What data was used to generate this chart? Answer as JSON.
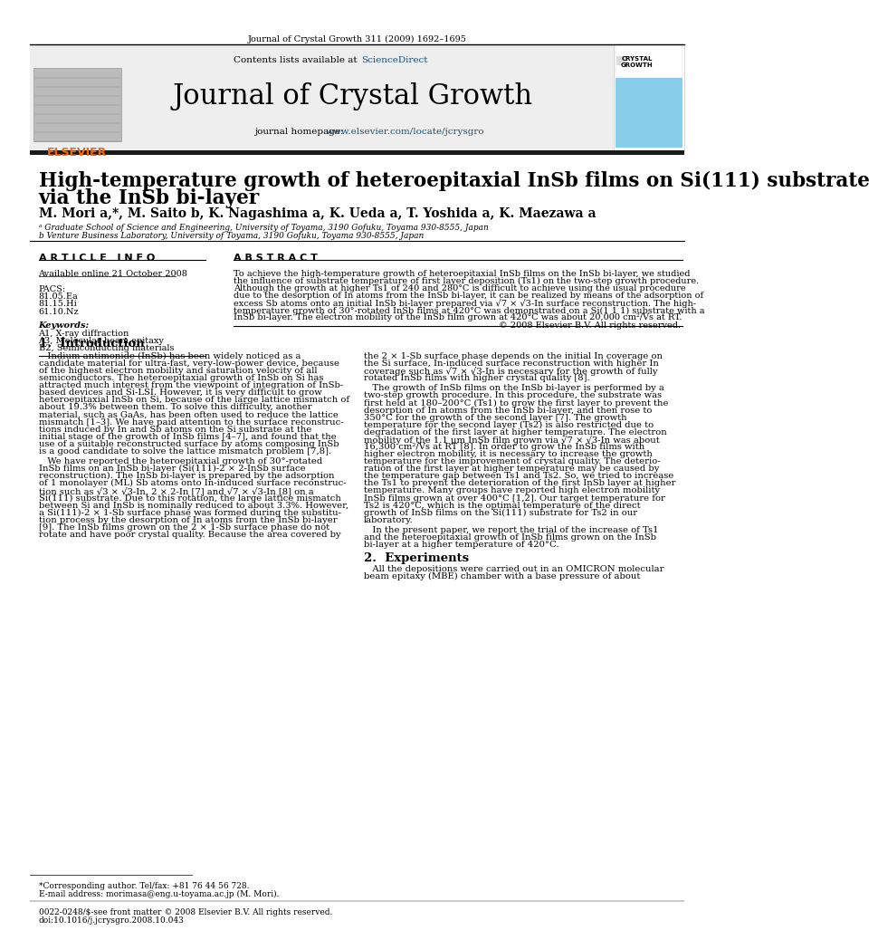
{
  "page_bg": "#ffffff",
  "header_journal_text": "Journal of Crystal Growth 311 (2009) 1692–1695",
  "header_bg": "#eeeeee",
  "header_contents": "Contents lists available at ScienceDirect",
  "header_journal_name": "Journal of Crystal Growth",
  "elsevier_color": "#ff6600",
  "sciencedirect_color": "#1a5276",
  "homepage_color": "#1a5276",
  "cover_bg": "#87ceeb",
  "dark_bar_color": "#1a1a1a",
  "article_title_line1": "High-temperature growth of heteroepitaxial InSb films on Si(111) substrate",
  "article_title_line2": "via the InSb bi-layer",
  "authors": "M. Mori a,*, M. Saito b, K. Nagashima a, K. Ueda a, T. Yoshida a, K. Maezawa a",
  "affiliation_a": "ᵃ Graduate School of Science and Engineering, University of Toyama, 3190 Gofuku, Toyama 930-8555, Japan",
  "affiliation_b": "b Venture Business Laboratory, University of Toyama, 3190 Gofuku, Toyama 930-8555, Japan",
  "article_info_header": "A R T I C L E   I N F O",
  "abstract_header": "A B S T R A C T",
  "available_online": "Available online 21 October 2008",
  "pacs_label": "PACS:",
  "pacs_items": [
    "81.05.Ea",
    "81.15.Hi",
    "61.10.Nz"
  ],
  "keywords_label": "Keywords:",
  "keywords_items": [
    "A1, X-ray diffraction",
    "A3, Molecular beam epitaxy",
    "B2, Semiconducting materials"
  ],
  "abstract_copyright": "© 2008 Elsevier B.V. All rights reserved.",
  "section1_title": "1.  Introduction",
  "section2_title": "2.  Experiments",
  "footnote_corresponding": "*Corresponding author. Tel/fax: +81 76 44 56 728.",
  "footnote_email": "E-mail address: morimasa@eng.u-toyama.ac.jp (M. Mori).",
  "footnote_issn": "0022-0248/$-see front matter © 2008 Elsevier B.V. All rights reserved.",
  "footnote_doi": "doi:10.1016/j.jcrysgro.2008.10.043",
  "abstract_lines": [
    "To achieve the high-temperature growth of heteroepitaxial InSb films on the InSb bi-layer, we studied",
    "the influence of substrate temperature of first layer deposition (Ts1) on the two-step growth procedure.",
    "Although the growth at higher Ts1 of 240 and 280°C is difficult to achieve using the usual procedure",
    "due to the desorption of In atoms from the InSb bi-layer, it can be realized by means of the adsorption of",
    "excess Sb atoms onto an initial InSb bi-layer prepared via √7 × √3-In surface reconstruction. The high-",
    "temperature growth of 30°-rotated InSb films at 420°C was demonstrated on a Si(1 1 1) substrate with a",
    "InSb bi-layer. The electron mobility of the InSb film grown at 420°C was about 20,000 cm²/Vs at RT."
  ],
  "intro_left1_lines": [
    "   Indium antimonide (InSb) has been widely noticed as a",
    "candidate material for ultra-fast, very-low-power device, because",
    "of the highest electron mobility and saturation velocity of all",
    "semiconductors. The heteroepitaxial growth of InSb on Si has",
    "attracted much interest from the viewpoint of integration of InSb-",
    "based devices and Si-LSI. However, it is very difficult to grow",
    "heteroepitaxial InSb on Si, because of the large lattice mismatch of",
    "about 19.3% between them. To solve this difficulty, another",
    "material, such as GaAs, has been often used to reduce the lattice",
    "mismatch [1–3]. We have paid attention to the surface reconstruc-",
    "tions induced by In and Sb atoms on the Si substrate at the",
    "initial stage of the growth of InSb films [4–7], and found that the",
    "use of a suitable reconstructed surface by atoms composing InSb",
    "is a good candidate to solve the lattice mismatch problem [7,8]."
  ],
  "intro_left2_lines": [
    "   We have reported the heteroepitaxial growth of 30°-rotated",
    "InSb films on an InSb bi-layer (Si(111)-2 × 2-InSb surface",
    "reconstruction). The InSb bi-layer is prepared by the adsorption",
    "of 1 monolayer (ML) Sb atoms onto In-induced surface reconstruc-",
    "tion such as √3 × √3-In, 2 × 2-In [7] and √7 × √3-In [8] on a",
    "Si(111) substrate. Due to this rotation, the large lattice mismatch",
    "between Si and InSb is nominally reduced to about 3.3%. However,",
    "a Si(111)-2 × 1-Sb surface phase was formed during the substitu-",
    "tion process by the desorption of In atoms from the InSb bi-layer",
    "[9]. The InSb films grown on the 2 × 1-Sb surface phase do not",
    "rotate and have poor crystal quality. Because the area covered by"
  ],
  "right_col1_lines": [
    "the 2 × 1-Sb surface phase depends on the initial In coverage on",
    "the Si surface, In-induced surface reconstruction with higher In",
    "coverage such as √7 × √3-In is necessary for the growth of fully",
    "rotated InSb films with higher crystal quality [8]."
  ],
  "right_col2_lines": [
    "   The growth of InSb films on the InSb bi-layer is performed by a",
    "two-step growth procedure. In this procedure, the substrate was",
    "first held at 180–200°C (Ts1) to grow the first layer to prevent the",
    "desorption of In atoms from the InSb bi-layer, and then rose to",
    "350°C for the growth of the second layer [7]. The growth",
    "temperature for the second layer (Ts2) is also restricted due to",
    "degradation of the first layer at higher temperature. The electron",
    "mobility of the 1.1 μm InSb film grown via √7 × √3-In was about",
    "16,300 cm²/Vs at RT [8]. In order to grow the InSb films with",
    "higher electron mobility, it is necessary to increase the growth",
    "temperature for the improvement of crystal quality. The deterio-",
    "ration of the first layer at higher temperature may be caused by",
    "the temperature gap between Ts1 and Ts2. So, we tried to increase",
    "the Ts1 to prevent the deterioration of the first InSb layer at higher",
    "temperature. Many groups have reported high electron mobility",
    "InSb films grown at over 400°C [1,2]. Our target temperature for",
    "Ts2 is 420°C, which is the optimal temperature of the direct",
    "growth of InSb films on the Si(111) substrate for Ts2 in our",
    "laboratory."
  ],
  "right_col3_lines": [
    "   In the present paper, we report the trial of the increase of Ts1",
    "and the heteroepitaxial growth of InSb films grown on the InSb",
    "bi-layer at a higher temperature of 420°C."
  ],
  "exp_lines": [
    "   All the depositions were carried out in an OMICRON molecular",
    "beam epitaxy (MBE) chamber with a base pressure of about"
  ]
}
